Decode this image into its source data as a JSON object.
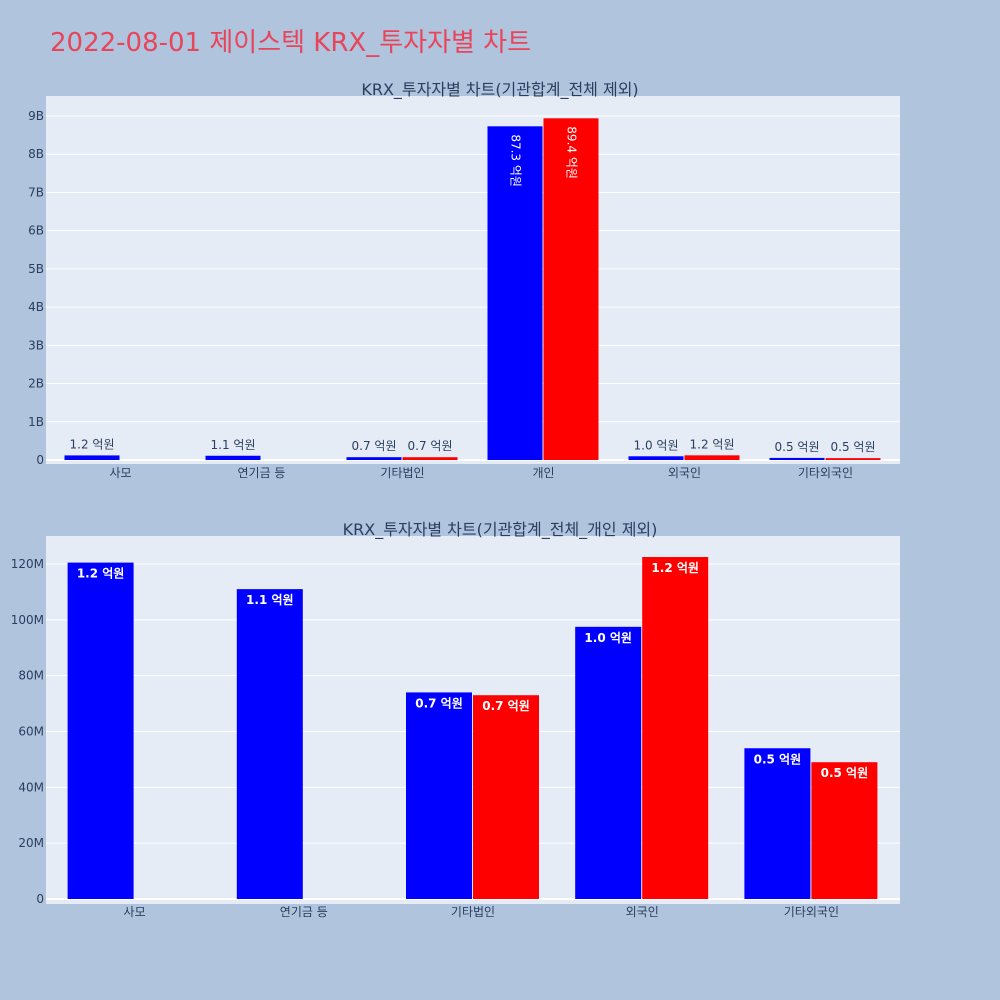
{
  "title": "2022-08-01 제이스텍 KRX_투자자별 차트",
  "chart_data": [
    {
      "type": "bar",
      "title": "KRX_투자자별 차트(기관합계_전체 제외)",
      "categories": [
        "사모",
        "연기금 등",
        "기타법인",
        "개인",
        "외국인",
        "기타외국인"
      ],
      "ylim": [
        0,
        9500000000
      ],
      "yticks": [
        0,
        1000000000,
        2000000000,
        3000000000,
        4000000000,
        5000000000,
        6000000000,
        7000000000,
        8000000000,
        9000000000
      ],
      "ytick_labels": [
        "0",
        "1B",
        "2B",
        "3B",
        "4B",
        "5B",
        "6B",
        "7B",
        "8B",
        "9B"
      ],
      "grid": true,
      "series": [
        {
          "color": "#0000ff",
          "values": [
            120000000,
            111000000,
            74000000,
            8730000000,
            97000000,
            54000000
          ],
          "labels": [
            "1.2 억원",
            "1.1 억원",
            "0.7 억원",
            "87.3 억원",
            "1.0 억원",
            "0.5 억원"
          ]
        },
        {
          "color": "#ff0000",
          "values": [
            null,
            null,
            73000000,
            8940000000,
            122000000,
            49000000
          ],
          "labels": [
            "",
            "",
            "0.7 억원",
            "89.4 억원",
            "1.2 억원",
            "0.5 억원"
          ]
        }
      ]
    },
    {
      "type": "bar",
      "title": "KRX_투자자별 차트(기관합계_전체_개인 제외)",
      "categories": [
        "사모",
        "연기금 등",
        "기타법인",
        "외국인",
        "기타외국인"
      ],
      "ylim": [
        0,
        130000000
      ],
      "yticks": [
        0,
        20000000,
        40000000,
        60000000,
        80000000,
        100000000,
        120000000
      ],
      "ytick_labels": [
        "0",
        "20M",
        "40M",
        "60M",
        "80M",
        "100M",
        "120M"
      ],
      "grid": true,
      "series": [
        {
          "color": "#0000ff",
          "values": [
            120500000,
            111000000,
            74000000,
            97500000,
            54000000
          ],
          "labels": [
            "1.2 억원",
            "1.1 억원",
            "0.7 억원",
            "1.0 억원",
            "0.5 억원"
          ]
        },
        {
          "color": "#ff0000",
          "values": [
            null,
            null,
            73000000,
            122500000,
            49000000
          ],
          "labels": [
            "",
            "",
            "0.7 억원",
            "1.2 억원",
            "0.5 억원"
          ]
        }
      ]
    }
  ]
}
